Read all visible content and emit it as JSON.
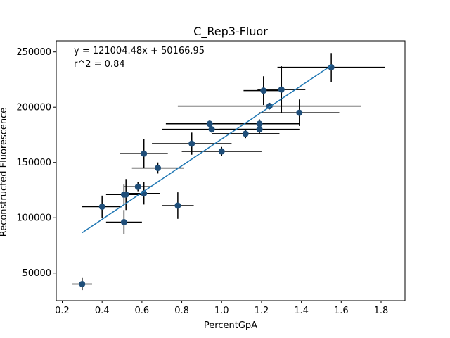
{
  "chart_data": {
    "type": "scatter",
    "title": "C_Rep3-Fluor",
    "xlabel": "PercentGpA",
    "ylabel": "Reconstructed Fluorescence",
    "xlim": [
      0.17,
      1.92
    ],
    "ylim": [
      25000,
      260000
    ],
    "x_ticks": [
      0.2,
      0.4,
      0.6,
      0.8,
      1.0,
      1.2,
      1.4,
      1.6,
      1.8
    ],
    "x_tick_labels": [
      "0.2",
      "0.4",
      "0.6",
      "0.8",
      "1.0",
      "1.2",
      "1.4",
      "1.6",
      "1.8"
    ],
    "y_ticks": [
      50000,
      100000,
      150000,
      200000,
      250000
    ],
    "y_tick_labels": [
      "50000",
      "100000",
      "150000",
      "200000",
      "250000"
    ],
    "grid": false,
    "annotations": [
      "y = 121004.48x + 50166.95",
      "r^2 = 0.84"
    ],
    "colors": {
      "points": "#1f4e79",
      "fit_line": "#1f77b4",
      "errorbars": "#000000"
    },
    "fit": {
      "slope": 121004.48,
      "intercept": 50166.95,
      "x_range": [
        0.3,
        1.55
      ]
    },
    "points": [
      {
        "x": 0.3,
        "y": 40000,
        "xerr": 0.05,
        "yerr": 5500
      },
      {
        "x": 0.4,
        "y": 110000,
        "xerr": 0.1,
        "yerr": 10000
      },
      {
        "x": 0.51,
        "y": 96000,
        "xerr": 0.09,
        "yerr": 11000
      },
      {
        "x": 0.51,
        "y": 121000,
        "xerr": 0.09,
        "yerr": 9000
      },
      {
        "x": 0.52,
        "y": 121000,
        "xerr": 0.08,
        "yerr": 14000
      },
      {
        "x": 0.58,
        "y": 128000,
        "xerr": 0.07,
        "yerr": 4000
      },
      {
        "x": 0.61,
        "y": 122000,
        "xerr": 0.08,
        "yerr": 10000
      },
      {
        "x": 0.61,
        "y": 158000,
        "xerr": 0.12,
        "yerr": 13000
      },
      {
        "x": 0.68,
        "y": 145000,
        "xerr": 0.13,
        "yerr": 5000
      },
      {
        "x": 0.78,
        "y": 111000,
        "xerr": 0.08,
        "yerr": 12000
      },
      {
        "x": 0.85,
        "y": 167000,
        "xerr": 0.2,
        "yerr": 10000
      },
      {
        "x": 0.94,
        "y": 185000,
        "xerr": 0.22,
        "yerr": 3000
      },
      {
        "x": 0.95,
        "y": 180000,
        "xerr": 0.25,
        "yerr": 3000
      },
      {
        "x": 1.0,
        "y": 160000,
        "xerr": 0.2,
        "yerr": 4000
      },
      {
        "x": 1.12,
        "y": 176000,
        "xerr": 0.17,
        "yerr": 4000
      },
      {
        "x": 1.19,
        "y": 185000,
        "xerr": 0.2,
        "yerr": 4000
      },
      {
        "x": 1.19,
        "y": 180000,
        "xerr": 0.2,
        "yerr": 4000
      },
      {
        "x": 1.21,
        "y": 215000,
        "xerr": 0.1,
        "yerr": 13000
      },
      {
        "x": 1.24,
        "y": 201000,
        "xerr": 0.46,
        "yerr": 3000
      },
      {
        "x": 1.3,
        "y": 216000,
        "xerr": 0.12,
        "yerr": 21000
      },
      {
        "x": 1.39,
        "y": 195000,
        "xerr": 0.2,
        "yerr": 12000
      },
      {
        "x": 1.55,
        "y": 236000,
        "xerr": 0.27,
        "yerr": 13000
      }
    ]
  }
}
